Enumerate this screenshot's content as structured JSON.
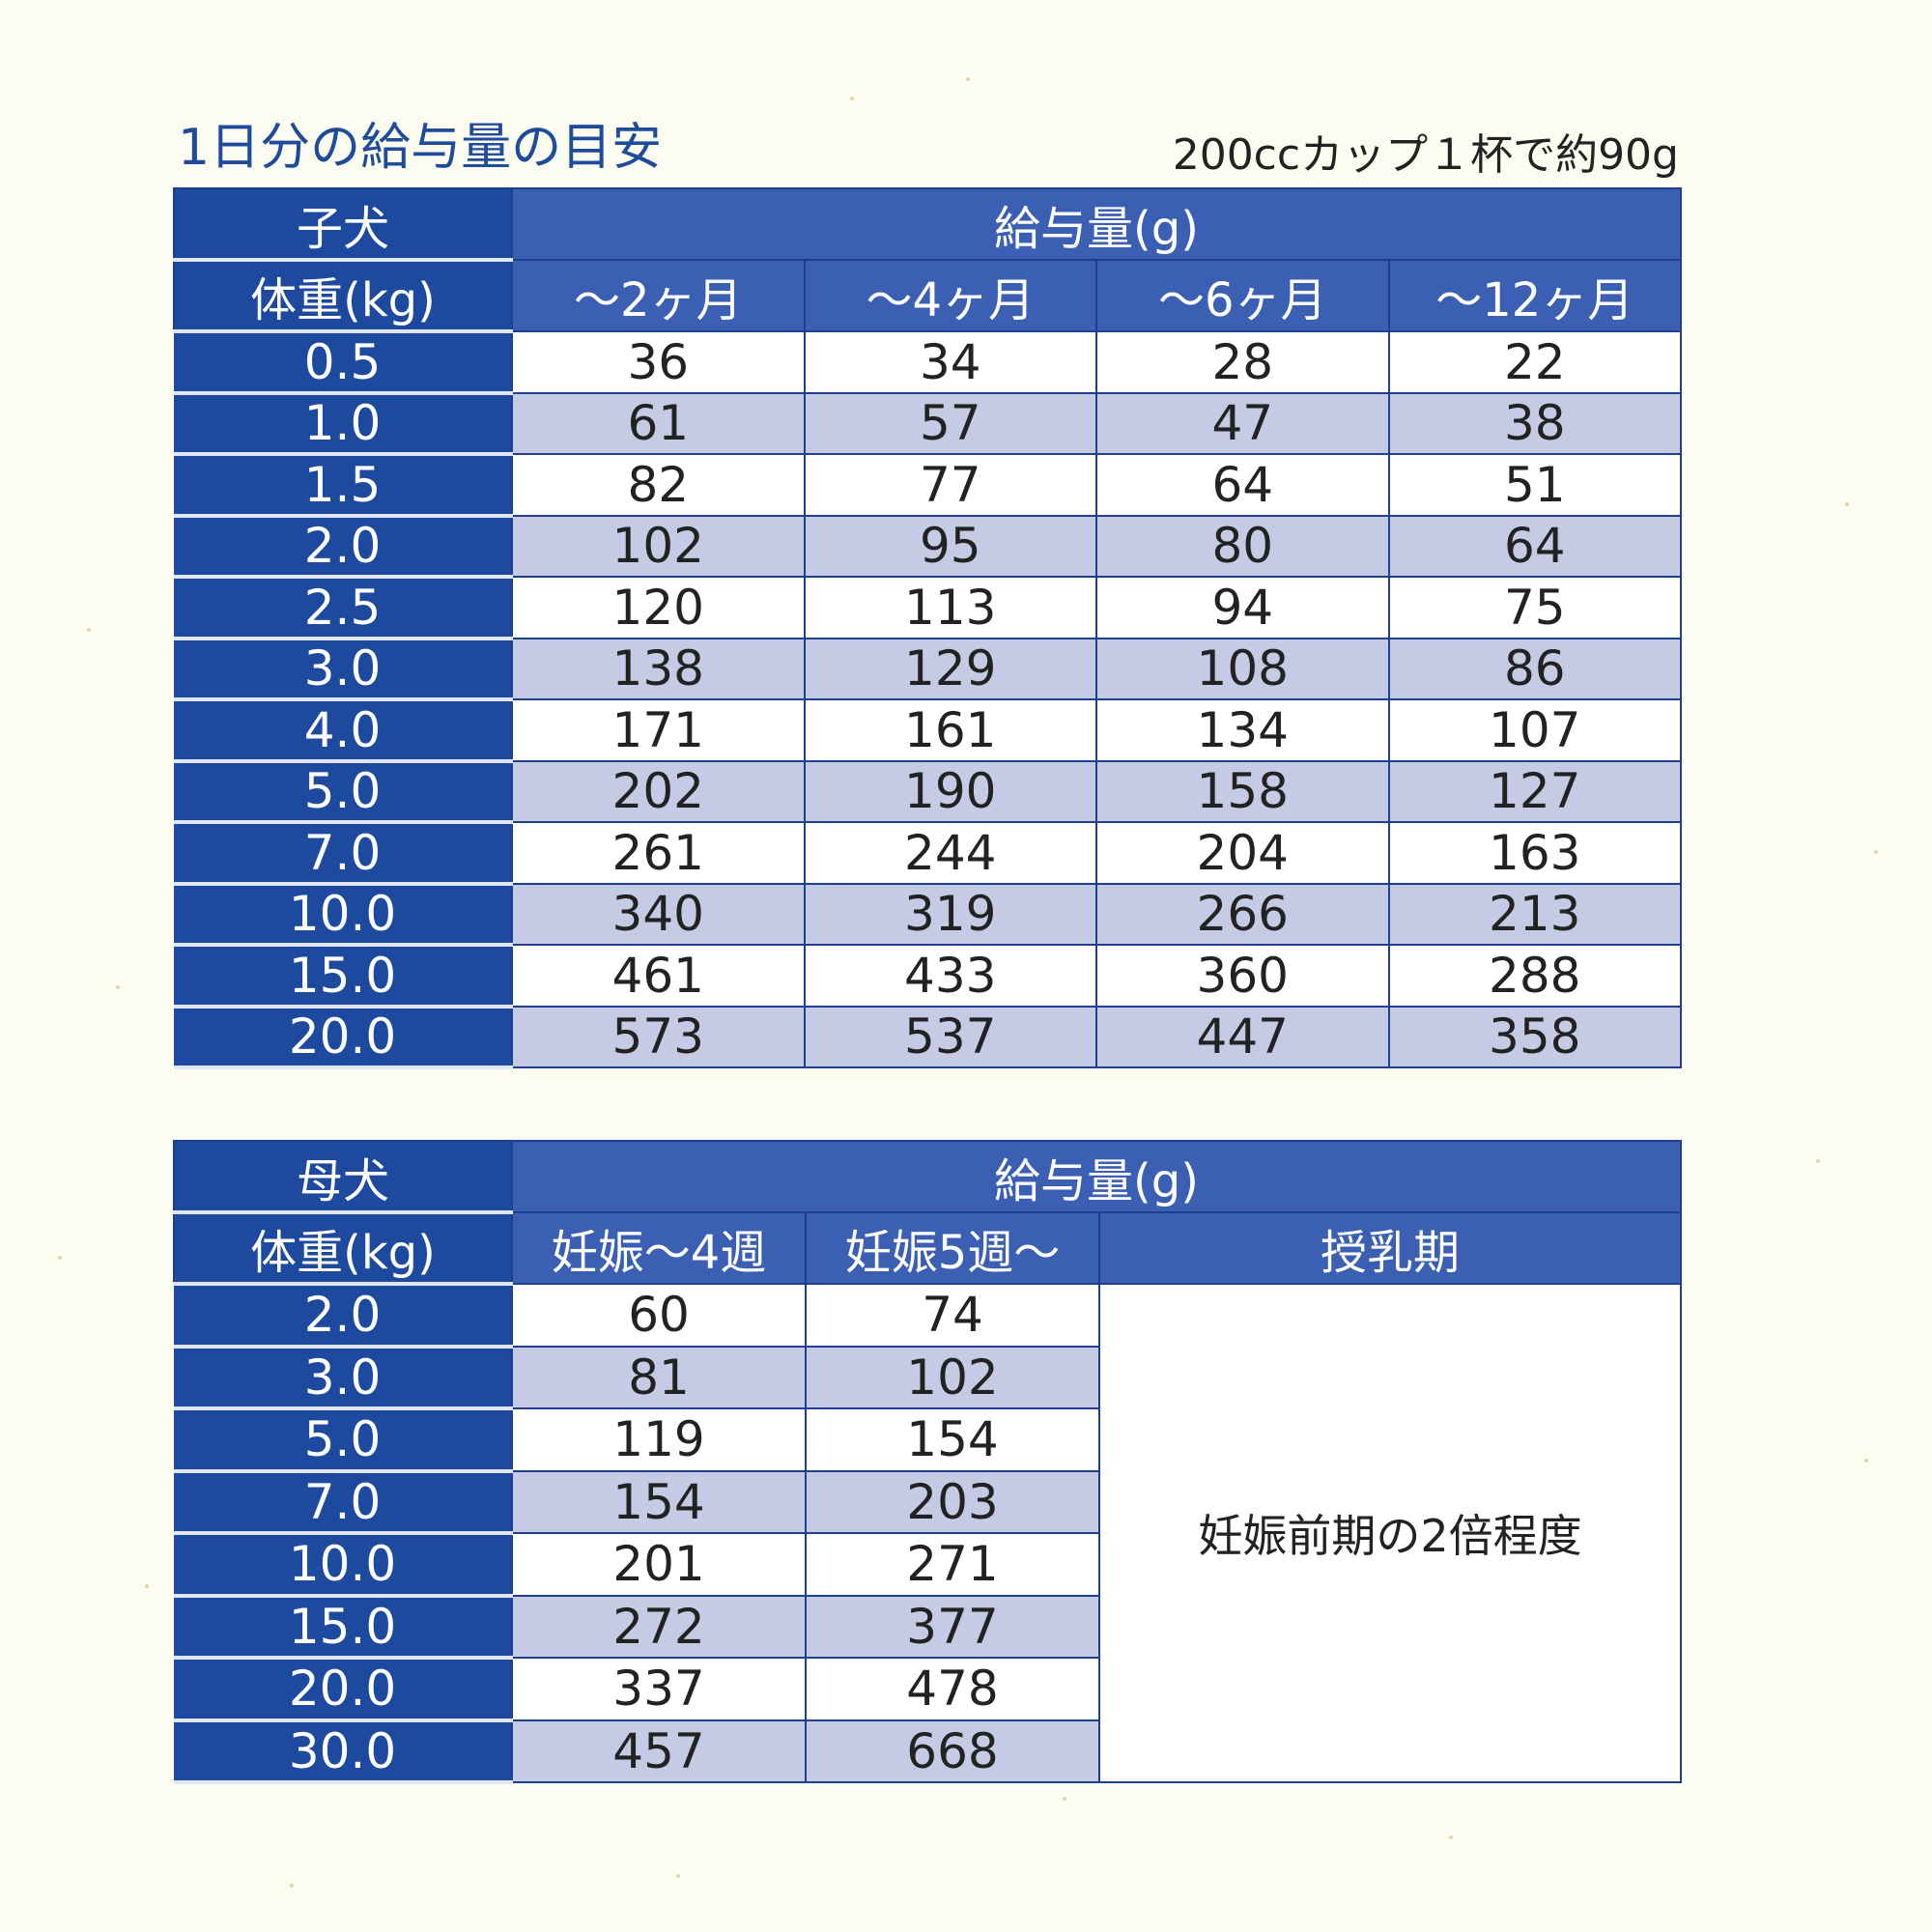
{
  "title": "1日分の給与量の目安",
  "note": "200ccカップ１杯で約90g",
  "puppy": {
    "label": "子犬",
    "weight_header": "体重(kg)",
    "amount_header": "給与量(g)",
    "columns": [
      "～2ヶ月",
      "～4ヶ月",
      "～6ヶ月",
      "～12ヶ月"
    ],
    "rows": [
      {
        "weight": "0.5",
        "values": [
          "36",
          "34",
          "28",
          "22"
        ]
      },
      {
        "weight": "1.0",
        "values": [
          "61",
          "57",
          "47",
          "38"
        ]
      },
      {
        "weight": "1.5",
        "values": [
          "82",
          "77",
          "64",
          "51"
        ]
      },
      {
        "weight": "2.0",
        "values": [
          "102",
          "95",
          "80",
          "64"
        ]
      },
      {
        "weight": "2.5",
        "values": [
          "120",
          "113",
          "94",
          "75"
        ]
      },
      {
        "weight": "3.0",
        "values": [
          "138",
          "129",
          "108",
          "86"
        ]
      },
      {
        "weight": "4.0",
        "values": [
          "171",
          "161",
          "134",
          "107"
        ]
      },
      {
        "weight": "5.0",
        "values": [
          "202",
          "190",
          "158",
          "127"
        ]
      },
      {
        "weight": "7.0",
        "values": [
          "261",
          "244",
          "204",
          "163"
        ]
      },
      {
        "weight": "10.0",
        "values": [
          "340",
          "319",
          "266",
          "213"
        ]
      },
      {
        "weight": "15.0",
        "values": [
          "461",
          "433",
          "360",
          "288"
        ]
      },
      {
        "weight": "20.0",
        "values": [
          "573",
          "537",
          "447",
          "358"
        ]
      }
    ]
  },
  "mother": {
    "label": "母犬",
    "weight_header": "体重(kg)",
    "amount_header": "給与量(g)",
    "columns": [
      "妊娠～4週",
      "妊娠5週～",
      "授乳期"
    ],
    "lactation_note": "妊娠前期の2倍程度",
    "rows": [
      {
        "weight": "2.0",
        "values": [
          "60",
          "74"
        ]
      },
      {
        "weight": "3.0",
        "values": [
          "81",
          "102"
        ]
      },
      {
        "weight": "5.0",
        "values": [
          "119",
          "154"
        ]
      },
      {
        "weight": "7.0",
        "values": [
          "154",
          "203"
        ]
      },
      {
        "weight": "10.0",
        "values": [
          "201",
          "271"
        ]
      },
      {
        "weight": "15.0",
        "values": [
          "272",
          "377"
        ]
      },
      {
        "weight": "20.0",
        "values": [
          "337",
          "478"
        ]
      },
      {
        "weight": "30.0",
        "values": [
          "457",
          "668"
        ]
      }
    ]
  },
  "colors": {
    "header_dark": "#1d4a9e",
    "header": "#3b5fb3",
    "row_alt": "#c6cbe5",
    "background": "#fcfcf1"
  }
}
